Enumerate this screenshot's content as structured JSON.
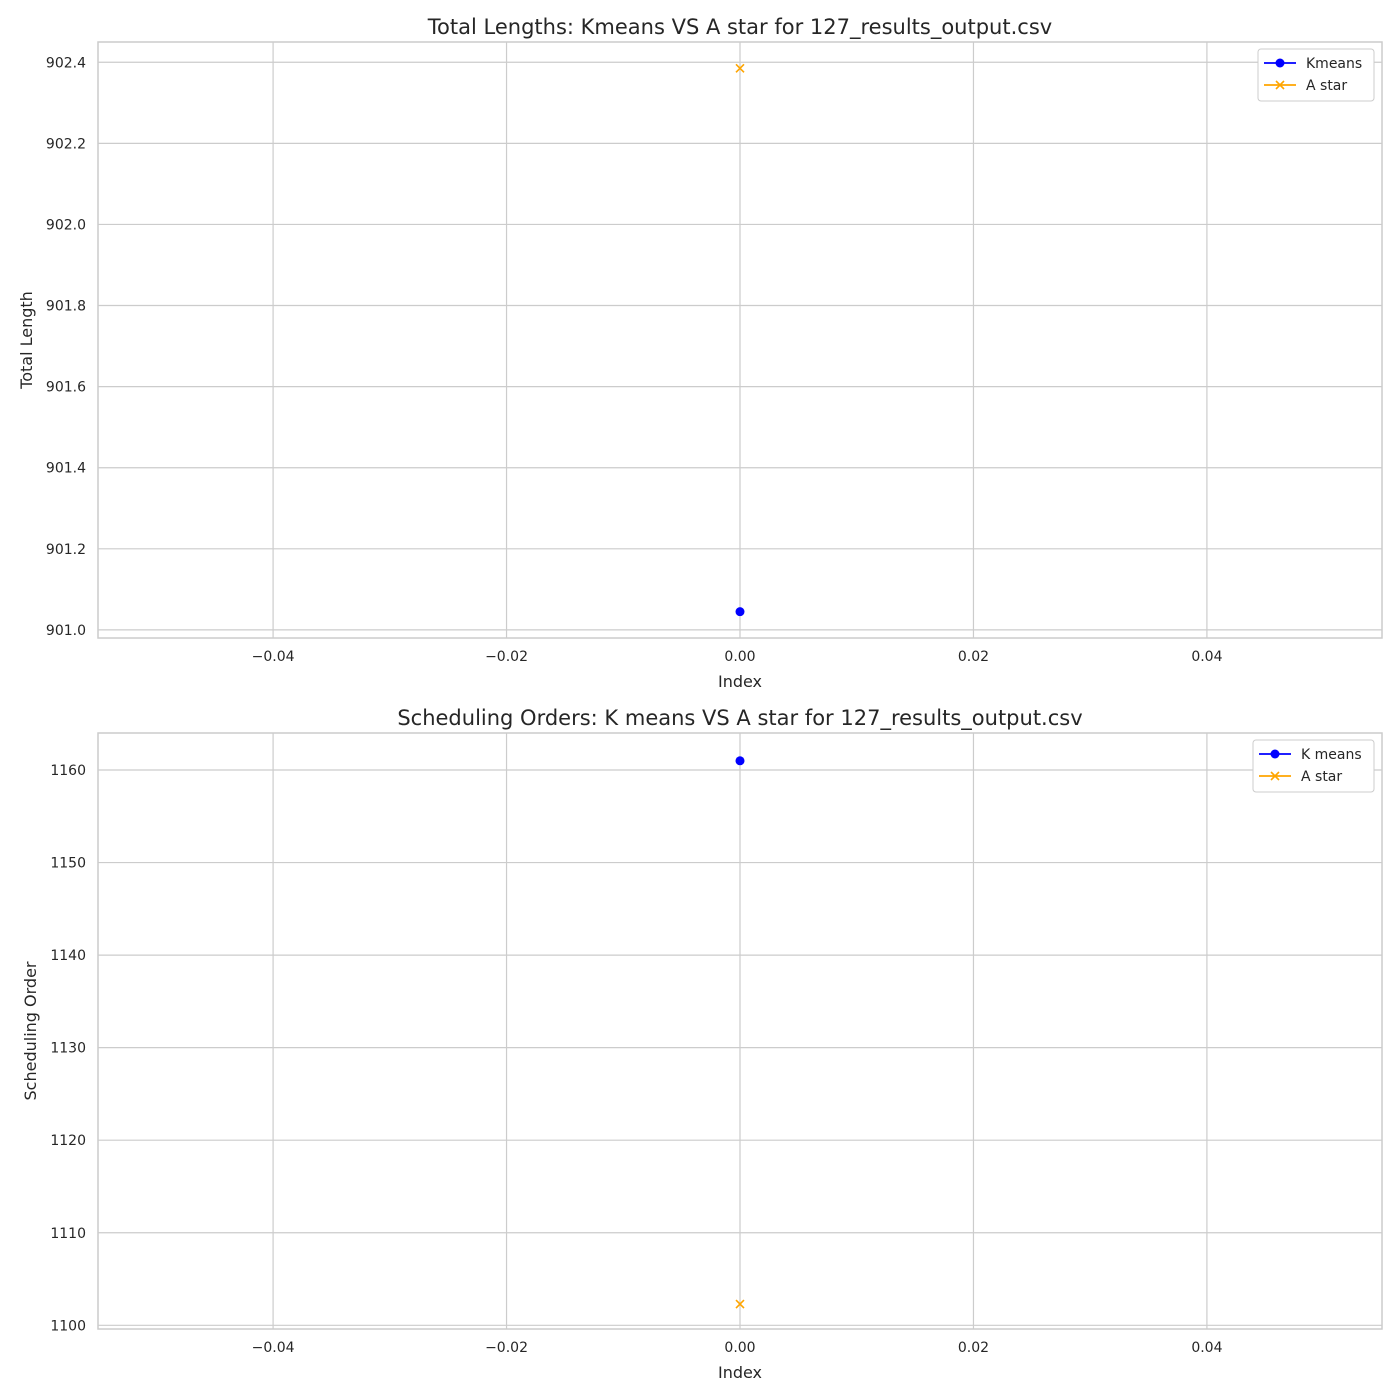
{
  "chart_data": [
    {
      "type": "line",
      "title": "Total Lengths: Kmeans VS A star for 127_results_output.csv",
      "xlabel": "Index",
      "ylabel": "Total Length",
      "xlim": [
        -0.055,
        0.055
      ],
      "ylim": [
        900.98,
        902.45
      ],
      "x_ticks": [
        -0.04,
        -0.02,
        0.0,
        0.02,
        0.04
      ],
      "x_tick_labels": [
        "−0.04",
        "−0.02",
        "0.00",
        "0.02",
        "0.04"
      ],
      "y_ticks": [
        901.0,
        901.2,
        901.4,
        901.6,
        901.8,
        902.0,
        902.2,
        902.4
      ],
      "y_tick_labels": [
        "901.0",
        "901.2",
        "901.4",
        "901.6",
        "901.8",
        "902.0",
        "902.2",
        "902.4"
      ],
      "grid": true,
      "legend_position": "top-right",
      "series": [
        {
          "name": "Kmeans",
          "marker": "circle",
          "color": "#0000ff",
          "x": [
            0
          ],
          "y": [
            901.045
          ]
        },
        {
          "name": "A star",
          "marker": "x",
          "color": "#ffa500",
          "x": [
            0
          ],
          "y": [
            902.385
          ]
        }
      ]
    },
    {
      "type": "line",
      "title": "Scheduling Orders: K means VS A star  for 127_results_output.csv",
      "xlabel": "Index",
      "ylabel": "Scheduling Order",
      "xlim": [
        -0.055,
        0.055
      ],
      "ylim": [
        1099.6,
        1164
      ],
      "x_ticks": [
        -0.04,
        -0.02,
        0.0,
        0.02,
        0.04
      ],
      "x_tick_labels": [
        "−0.04",
        "−0.02",
        "0.00",
        "0.02",
        "0.04"
      ],
      "y_ticks": [
        1100,
        1110,
        1120,
        1130,
        1140,
        1150,
        1160
      ],
      "y_tick_labels": [
        "1100",
        "1110",
        "1120",
        "1130",
        "1140",
        "1150",
        "1160"
      ],
      "grid": true,
      "legend_position": "top-right",
      "series": [
        {
          "name": "K means",
          "marker": "circle",
          "color": "#0000ff",
          "x": [
            0
          ],
          "y": [
            1161
          ]
        },
        {
          "name": "A star",
          "marker": "x",
          "color": "#ffa500",
          "x": [
            0
          ],
          "y": [
            1102.3
          ]
        }
      ]
    }
  ]
}
